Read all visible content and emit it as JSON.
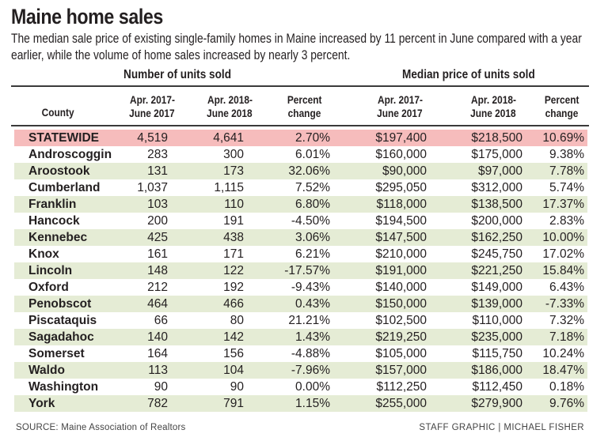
{
  "title": "Maine home sales",
  "subtitle": "The median sale price of existing single-family homes in Maine increased by 11 percent in June compared with a year earlier, while the volume of home sales increased by nearly 3 percent.",
  "groups": {
    "units": "Number of units sold",
    "price": "Median price of units sold"
  },
  "headers": {
    "county": "County",
    "u2017": [
      "Apr. 2017-",
      "June 2017"
    ],
    "u2018": [
      "Apr. 2018-",
      "June 2018"
    ],
    "upct": [
      "Percent",
      "change"
    ],
    "p2017": [
      "Apr. 2017-",
      "June 2017"
    ],
    "p2018": [
      "Apr. 2018-",
      "June 2018"
    ],
    "ppct": [
      "Percent",
      "change"
    ]
  },
  "colors": {
    "statewide_row": "#f6bcbc",
    "alt_row": "#e5ecd5",
    "text": "#231f20"
  },
  "source": "SOURCE: Maine Association of Realtors",
  "credit": "STAFF GRAPHIC | MICHAEL FISHER",
  "chart_data": {
    "type": "table",
    "title": "Maine home sales",
    "columns": [
      "County",
      "Units Apr. 2017-June 2017",
      "Units Apr. 2018-June 2018",
      "Units Percent change",
      "Median price Apr. 2017-June 2017",
      "Median price Apr. 2018-June 2018",
      "Median price Percent change"
    ],
    "rows": [
      [
        "STATEWIDE",
        "4,519",
        "4,641",
        "2.70%",
        "$197,400",
        "$218,500",
        "10.69%"
      ],
      [
        "Androscoggin",
        "283",
        "300",
        "6.01%",
        "$160,000",
        "$175,000",
        "9.38%"
      ],
      [
        "Aroostook",
        "131",
        "173",
        "32.06%",
        "$90,000",
        "$97,000",
        "7.78%"
      ],
      [
        "Cumberland",
        "1,037",
        "1,115",
        "7.52%",
        "$295,050",
        "$312,000",
        "5.74%"
      ],
      [
        "Franklin",
        "103",
        "110",
        "6.80%",
        "$118,000",
        "$138,500",
        "17.37%"
      ],
      [
        "Hancock",
        "200",
        "191",
        "-4.50%",
        "$194,500",
        "$200,000",
        "2.83%"
      ],
      [
        "Kennebec",
        "425",
        "438",
        "3.06%",
        "$147,500",
        "$162,250",
        "10.00%"
      ],
      [
        "Knox",
        "161",
        "171",
        "6.21%",
        "$210,000",
        "$245,750",
        "17.02%"
      ],
      [
        "Lincoln",
        "148",
        "122",
        "-17.57%",
        "$191,000",
        "$221,250",
        "15.84%"
      ],
      [
        "Oxford",
        "212",
        "192",
        "-9.43%",
        "$140,000",
        "$149,000",
        "6.43%"
      ],
      [
        "Penobscot",
        "464",
        "466",
        "0.43%",
        "$150,000",
        "$139,000",
        "-7.33%"
      ],
      [
        "Piscataquis",
        "66",
        "80",
        "21.21%",
        "$102,500",
        "$110,000",
        "7.32%"
      ],
      [
        "Sagadahoc",
        "140",
        "142",
        "1.43%",
        "$219,250",
        "$235,000",
        "7.18%"
      ],
      [
        "Somerset",
        "164",
        "156",
        "-4.88%",
        "$105,000",
        "$115,750",
        "10.24%"
      ],
      [
        "Waldo",
        "113",
        "104",
        "-7.96%",
        "$157,000",
        "$186,000",
        "18.47%"
      ],
      [
        "Washington",
        "90",
        "90",
        "0.00%",
        "$112,250",
        "$112,450",
        "0.18%"
      ],
      [
        "York",
        "782",
        "791",
        "1.15%",
        "$255,000",
        "$279,900",
        "9.76%"
      ]
    ]
  }
}
